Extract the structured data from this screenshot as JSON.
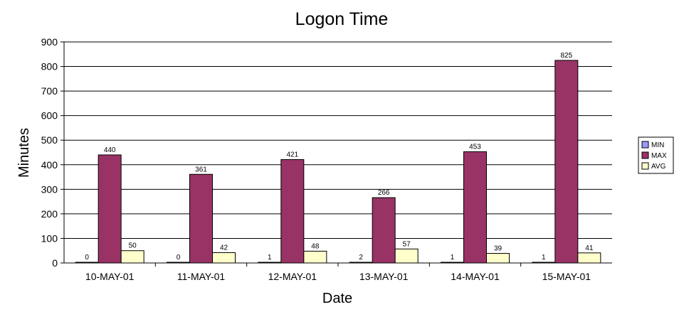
{
  "chart_data": {
    "type": "bar",
    "title": "Logon Time",
    "xlabel": "Date",
    "ylabel": "Minutes",
    "categories": [
      "10-MAY-01",
      "11-MAY-01",
      "12-MAY-01",
      "13-MAY-01",
      "14-MAY-01",
      "15-MAY-01"
    ],
    "series": [
      {
        "name": "MIN",
        "color": "#9999ff",
        "values": [
          0,
          0,
          1,
          2,
          1,
          1
        ]
      },
      {
        "name": "MAX",
        "color": "#993366",
        "values": [
          440,
          361,
          421,
          266,
          453,
          825
        ]
      },
      {
        "name": "AVG",
        "color": "#ffffcc",
        "values": [
          50,
          42,
          48,
          57,
          39,
          41
        ]
      }
    ],
    "ylim": [
      0,
      900
    ],
    "yticks": [
      0,
      100,
      200,
      300,
      400,
      500,
      600,
      700,
      800,
      900
    ],
    "grid": true,
    "legend_position": "right"
  }
}
